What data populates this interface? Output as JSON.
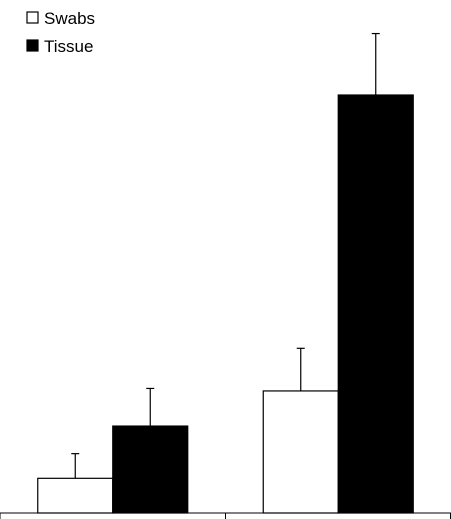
{
  "chart_data": {
    "type": "bar",
    "title": "",
    "xlabel": "",
    "ylabel": "",
    "categories": [
      "",
      ""
    ],
    "ylim": [
      0,
      100
    ],
    "grid": false,
    "legend_position": "top-left",
    "series": [
      {
        "name": "Swabs",
        "values": [
          8.3,
          29.2
        ],
        "errors": [
          5.9,
          10.2
        ],
        "color": "#ffffff",
        "stroke": "#000000"
      },
      {
        "name": "Tissue",
        "values": [
          20.8,
          100
        ],
        "errors": [
          9.0,
          14.7
        ],
        "color": "#000000",
        "stroke": "#000000"
      }
    ]
  }
}
